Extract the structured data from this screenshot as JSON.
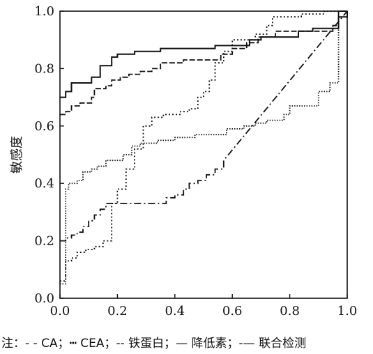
{
  "chart_data": {
    "type": "line",
    "title": "",
    "xlabel": "",
    "ylabel": "敏感度",
    "xlim": [
      0,
      1
    ],
    "ylim": [
      0,
      1
    ],
    "xticks": [
      "0.0",
      "0.2",
      "0.4",
      "0.6",
      "0.8",
      "1.0"
    ],
    "yticks": [
      "0.0",
      "0.2",
      "0.4",
      "0.6",
      "0.8",
      "1.0"
    ],
    "grid": false,
    "legend_text": "注：‐ ‐ CA；┅ CEA；‐‐ 铁蛋白；— 降低素；‐— 联合检测",
    "series": [
      {
        "name": "CA",
        "dash": "2,3",
        "points": [
          [
            0,
            0.06
          ],
          [
            0.02,
            0.06
          ],
          [
            0.02,
            0.13
          ],
          [
            0.04,
            0.13
          ],
          [
            0.04,
            0.14
          ],
          [
            0.06,
            0.14
          ],
          [
            0.06,
            0.16
          ],
          [
            0.09,
            0.16
          ],
          [
            0.09,
            0.17
          ],
          [
            0.12,
            0.17
          ],
          [
            0.12,
            0.18
          ],
          [
            0.15,
            0.18
          ],
          [
            0.15,
            0.2
          ],
          [
            0.18,
            0.2
          ],
          [
            0.18,
            0.33
          ],
          [
            0.2,
            0.33
          ],
          [
            0.2,
            0.38
          ],
          [
            0.23,
            0.38
          ],
          [
            0.23,
            0.45
          ],
          [
            0.26,
            0.45
          ],
          [
            0.26,
            0.52
          ],
          [
            0.29,
            0.52
          ],
          [
            0.29,
            0.6
          ],
          [
            0.32,
            0.6
          ],
          [
            0.32,
            0.63
          ],
          [
            0.36,
            0.63
          ],
          [
            0.36,
            0.64
          ],
          [
            0.42,
            0.64
          ],
          [
            0.42,
            0.65
          ],
          [
            0.45,
            0.65
          ],
          [
            0.45,
            0.66
          ],
          [
            0.48,
            0.66
          ],
          [
            0.48,
            0.7
          ],
          [
            0.5,
            0.7
          ],
          [
            0.5,
            0.72
          ],
          [
            0.52,
            0.72
          ],
          [
            0.52,
            0.76
          ],
          [
            0.54,
            0.76
          ],
          [
            0.54,
            0.82
          ],
          [
            0.57,
            0.82
          ],
          [
            0.57,
            0.86
          ],
          [
            0.6,
            0.86
          ],
          [
            0.6,
            0.9
          ],
          [
            0.68,
            0.9
          ],
          [
            0.68,
            0.92
          ],
          [
            0.72,
            0.92
          ],
          [
            0.72,
            0.95
          ],
          [
            0.74,
            0.95
          ],
          [
            0.74,
            0.98
          ],
          [
            0.84,
            0.98
          ],
          [
            0.84,
            0.99
          ],
          [
            0.92,
            0.99
          ],
          [
            0.92,
            1.0
          ],
          [
            1.0,
            1.0
          ]
        ]
      },
      {
        "name": "CEA",
        "dash": "1.5,2",
        "points": [
          [
            0,
            0.05
          ],
          [
            0.02,
            0.05
          ],
          [
            0.02,
            0.38
          ],
          [
            0.03,
            0.38
          ],
          [
            0.03,
            0.4
          ],
          [
            0.06,
            0.4
          ],
          [
            0.06,
            0.41
          ],
          [
            0.08,
            0.41
          ],
          [
            0.08,
            0.44
          ],
          [
            0.11,
            0.44
          ],
          [
            0.11,
            0.45
          ],
          [
            0.13,
            0.45
          ],
          [
            0.13,
            0.46
          ],
          [
            0.16,
            0.46
          ],
          [
            0.16,
            0.48
          ],
          [
            0.22,
            0.48
          ],
          [
            0.22,
            0.5
          ],
          [
            0.25,
            0.5
          ],
          [
            0.25,
            0.53
          ],
          [
            0.28,
            0.53
          ],
          [
            0.28,
            0.54
          ],
          [
            0.34,
            0.54
          ],
          [
            0.34,
            0.55
          ],
          [
            0.4,
            0.55
          ],
          [
            0.4,
            0.56
          ],
          [
            0.47,
            0.56
          ],
          [
            0.47,
            0.57
          ],
          [
            0.58,
            0.57
          ],
          [
            0.58,
            0.59
          ],
          [
            0.64,
            0.59
          ],
          [
            0.64,
            0.6
          ],
          [
            0.68,
            0.6
          ],
          [
            0.68,
            0.61
          ],
          [
            0.72,
            0.61
          ],
          [
            0.72,
            0.62
          ],
          [
            0.78,
            0.62
          ],
          [
            0.78,
            0.64
          ],
          [
            0.8,
            0.64
          ],
          [
            0.8,
            0.67
          ],
          [
            0.9,
            0.67
          ],
          [
            0.9,
            0.72
          ],
          [
            0.94,
            0.72
          ],
          [
            0.94,
            0.75
          ],
          [
            0.97,
            0.75
          ],
          [
            0.97,
            1.0
          ],
          [
            1.0,
            1.0
          ]
        ]
      },
      {
        "name": "铁蛋白",
        "dash": "10,4,2,4",
        "points": [
          [
            0,
            0.2
          ],
          [
            0.02,
            0.2
          ],
          [
            0.02,
            0.21
          ],
          [
            0.04,
            0.21
          ],
          [
            0.04,
            0.22
          ],
          [
            0.06,
            0.22
          ],
          [
            0.06,
            0.23
          ],
          [
            0.08,
            0.23
          ],
          [
            0.08,
            0.25
          ],
          [
            0.1,
            0.25
          ],
          [
            0.1,
            0.27
          ],
          [
            0.12,
            0.27
          ],
          [
            0.12,
            0.29
          ],
          [
            0.14,
            0.29
          ],
          [
            0.14,
            0.31
          ],
          [
            0.16,
            0.31
          ],
          [
            0.16,
            0.33
          ],
          [
            0.37,
            0.33
          ],
          [
            0.37,
            0.35
          ],
          [
            0.4,
            0.35
          ],
          [
            0.4,
            0.36
          ],
          [
            0.43,
            0.36
          ],
          [
            0.43,
            0.38
          ],
          [
            0.45,
            0.38
          ],
          [
            0.45,
            0.4
          ],
          [
            0.48,
            0.4
          ],
          [
            0.48,
            0.41
          ],
          [
            0.51,
            0.41
          ],
          [
            0.51,
            0.43
          ],
          [
            0.54,
            0.43
          ],
          [
            0.54,
            0.45
          ],
          [
            0.57,
            0.45
          ],
          [
            0.57,
            0.48
          ],
          [
            1.0,
            1.0
          ]
        ]
      },
      {
        "name": "降低素",
        "dash": "8,3",
        "points": [
          [
            0,
            0.64
          ],
          [
            0.02,
            0.64
          ],
          [
            0.02,
            0.65
          ],
          [
            0.04,
            0.65
          ],
          [
            0.04,
            0.67
          ],
          [
            0.07,
            0.67
          ],
          [
            0.07,
            0.68
          ],
          [
            0.11,
            0.68
          ],
          [
            0.11,
            0.7
          ],
          [
            0.12,
            0.7
          ],
          [
            0.12,
            0.73
          ],
          [
            0.16,
            0.73
          ],
          [
            0.16,
            0.74
          ],
          [
            0.18,
            0.74
          ],
          [
            0.18,
            0.76
          ],
          [
            0.21,
            0.76
          ],
          [
            0.21,
            0.77
          ],
          [
            0.24,
            0.77
          ],
          [
            0.24,
            0.78
          ],
          [
            0.28,
            0.78
          ],
          [
            0.28,
            0.79
          ],
          [
            0.32,
            0.79
          ],
          [
            0.32,
            0.8
          ],
          [
            0.35,
            0.8
          ],
          [
            0.35,
            0.82
          ],
          [
            0.43,
            0.82
          ],
          [
            0.43,
            0.83
          ],
          [
            0.56,
            0.83
          ],
          [
            0.56,
            0.85
          ],
          [
            0.6,
            0.85
          ],
          [
            0.6,
            0.87
          ],
          [
            0.65,
            0.87
          ],
          [
            0.65,
            0.89
          ],
          [
            0.69,
            0.89
          ],
          [
            0.69,
            0.91
          ],
          [
            0.75,
            0.91
          ],
          [
            0.75,
            0.93
          ],
          [
            0.95,
            0.93
          ],
          [
            0.95,
            0.95
          ],
          [
            0.97,
            0.95
          ],
          [
            0.97,
            1.0
          ],
          [
            1.0,
            1.0
          ]
        ]
      },
      {
        "name": "联合检测",
        "dash": "",
        "points": [
          [
            0,
            0.7
          ],
          [
            0.02,
            0.7
          ],
          [
            0.02,
            0.72
          ],
          [
            0.04,
            0.72
          ],
          [
            0.04,
            0.75
          ],
          [
            0.11,
            0.75
          ],
          [
            0.11,
            0.77
          ],
          [
            0.14,
            0.77
          ],
          [
            0.14,
            0.81
          ],
          [
            0.18,
            0.81
          ],
          [
            0.18,
            0.84
          ],
          [
            0.2,
            0.84
          ],
          [
            0.2,
            0.85
          ],
          [
            0.26,
            0.85
          ],
          [
            0.26,
            0.86
          ],
          [
            0.35,
            0.86
          ],
          [
            0.35,
            0.87
          ],
          [
            0.54,
            0.87
          ],
          [
            0.54,
            0.88
          ],
          [
            0.66,
            0.88
          ],
          [
            0.66,
            0.9
          ],
          [
            0.7,
            0.9
          ],
          [
            0.7,
            0.91
          ],
          [
            0.83,
            0.91
          ],
          [
            0.83,
            0.93
          ],
          [
            0.88,
            0.93
          ],
          [
            0.88,
            0.94
          ],
          [
            0.97,
            0.94
          ],
          [
            0.97,
            0.98
          ],
          [
            1.0,
            0.98
          ],
          [
            1.0,
            1.0
          ]
        ]
      }
    ]
  }
}
